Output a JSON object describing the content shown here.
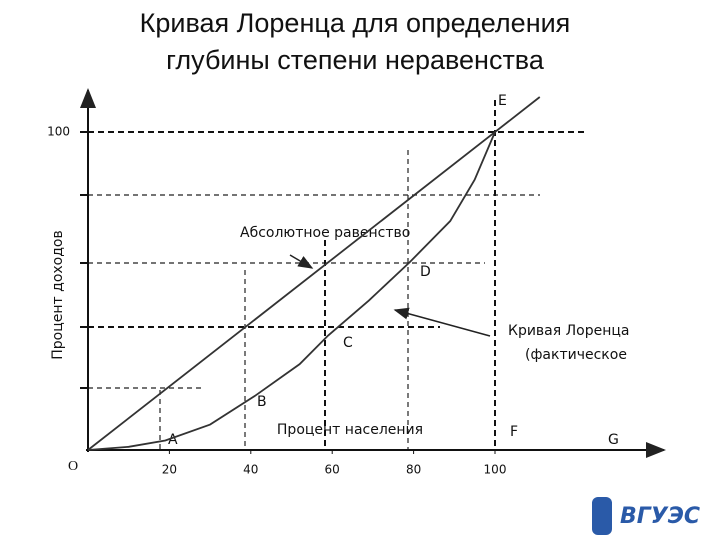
{
  "chart_data": {
    "type": "line",
    "title": [
      "Кривая Лоренца для определения",
      "глубины степени неравенства"
    ],
    "x_label": "Процент населения",
    "y_label": "Процент доходов",
    "xlim": [
      0,
      142
    ],
    "ylim": [
      0,
      114
    ],
    "xticks": [
      20,
      40,
      60,
      80,
      100
    ],
    "yticks": [
      100
    ],
    "series": [
      {
        "name": "Абсолютное равенство",
        "color": "#333333",
        "x": [
          0,
          111
        ],
        "values": [
          0,
          111
        ]
      },
      {
        "name": "Кривая Лоренца",
        "color": "#333333",
        "x": [
          0,
          10,
          19,
          30,
          41,
          52,
          59,
          69,
          79,
          89,
          95,
          100
        ],
        "values": [
          0,
          1,
          3,
          8,
          17,
          27,
          36,
          47,
          59,
          72,
          85,
          100
        ]
      }
    ],
    "annotations": [
      "(фактическое",
      "A",
      "B",
      "C",
      "D",
      "E",
      "F",
      "G",
      "O"
    ],
    "logo": "ВГУЭС"
  }
}
